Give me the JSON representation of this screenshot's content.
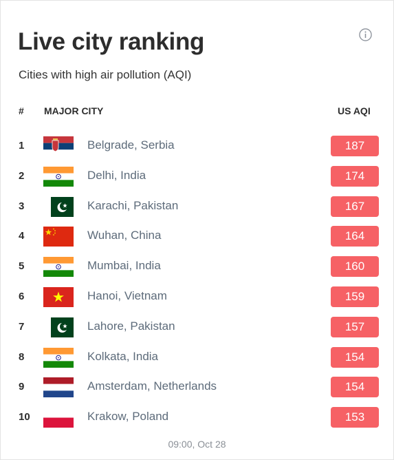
{
  "widget": {
    "title": "Live city ranking",
    "subtitle": "Cities with high air pollution (AQI)",
    "info_icon": "info-icon",
    "columns": {
      "rank": "#",
      "city": "MAJOR CITY",
      "aqi": "US AQI"
    },
    "badge_color": "#f66165",
    "rows": [
      {
        "rank": "1",
        "city": "Belgrade, Serbia",
        "aqi": "187",
        "flag": "serbia"
      },
      {
        "rank": "2",
        "city": "Delhi, India",
        "aqi": "174",
        "flag": "india"
      },
      {
        "rank": "3",
        "city": "Karachi, Pakistan",
        "aqi": "167",
        "flag": "pakistan"
      },
      {
        "rank": "4",
        "city": "Wuhan, China",
        "aqi": "164",
        "flag": "china"
      },
      {
        "rank": "5",
        "city": "Mumbai, India",
        "aqi": "160",
        "flag": "india"
      },
      {
        "rank": "6",
        "city": "Hanoi, Vietnam",
        "aqi": "159",
        "flag": "vietnam"
      },
      {
        "rank": "7",
        "city": "Lahore, Pakistan",
        "aqi": "157",
        "flag": "pakistan"
      },
      {
        "rank": "8",
        "city": "Kolkata, India",
        "aqi": "154",
        "flag": "india"
      },
      {
        "rank": "9",
        "city": "Amsterdam, Netherlands",
        "aqi": "154",
        "flag": "netherlands"
      },
      {
        "rank": "10",
        "city": "Krakow, Poland",
        "aqi": "153",
        "flag": "poland"
      }
    ],
    "timestamp": "09:00, Oct 28"
  }
}
